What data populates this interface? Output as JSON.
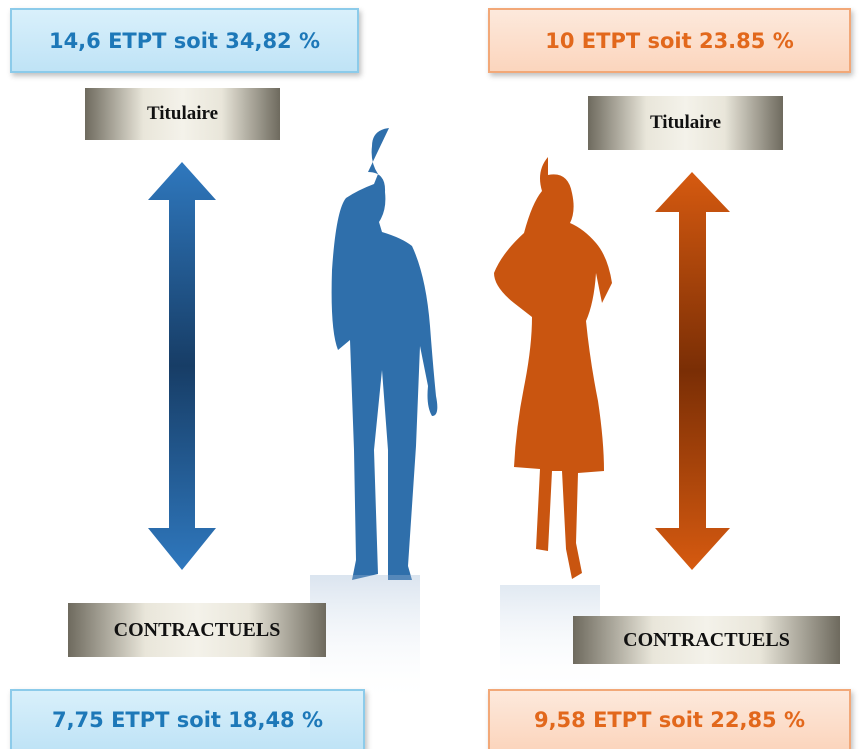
{
  "left": {
    "top_box": "14,6 ETPT soit 34,82 %",
    "upper_label": "Titulaire",
    "lower_label": "CONTRACTUELS",
    "bottom_box": "7,75 ETPT soit 18,48 %"
  },
  "right": {
    "top_box": "10 ETPT soit 23.85 %",
    "upper_label": "Titulaire",
    "lower_label": "CONTRACTUELS",
    "bottom_box": "9,58 ETPT soit 22,85 %"
  }
}
